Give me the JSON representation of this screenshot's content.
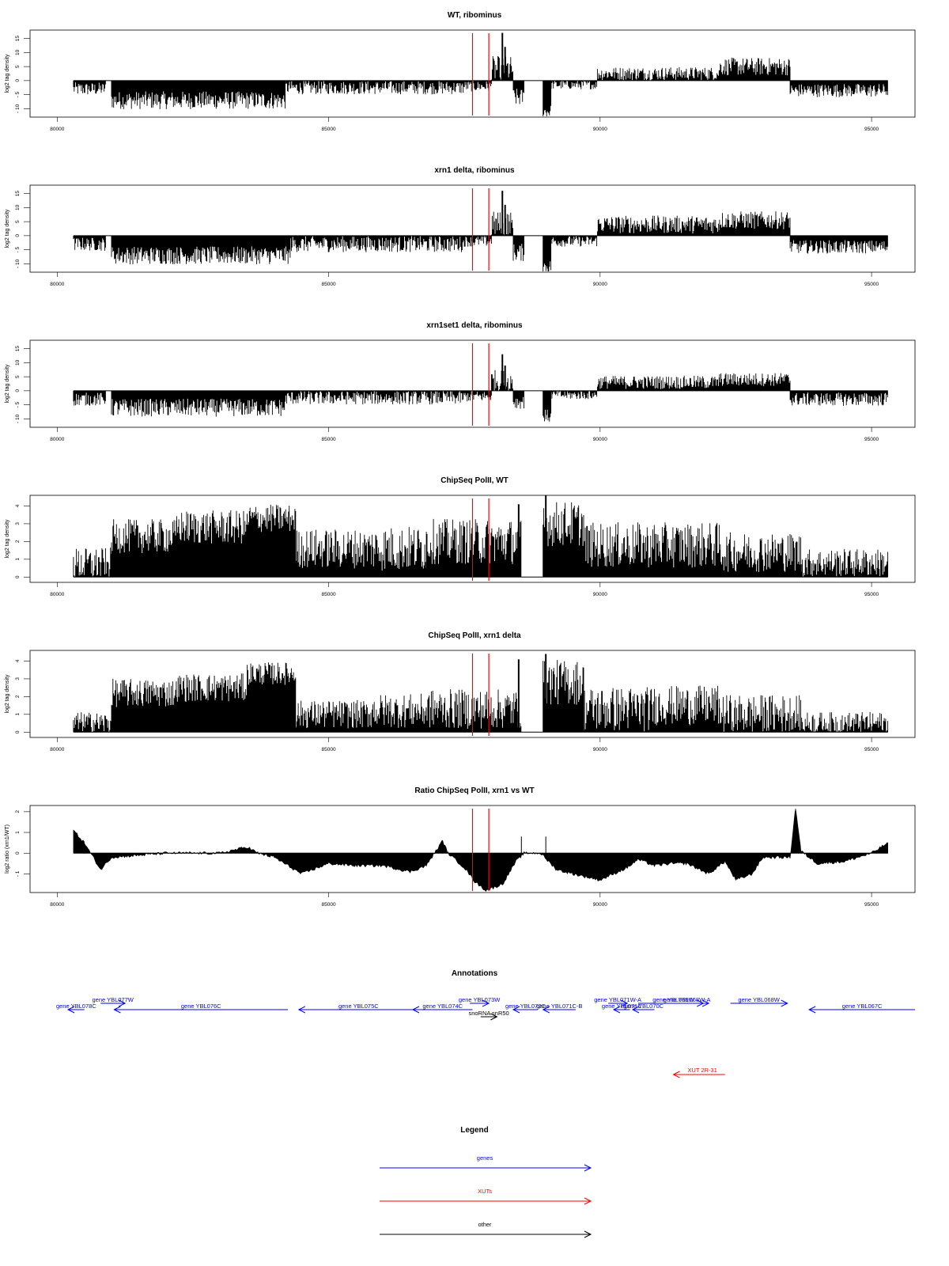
{
  "chart_data": [
    {
      "type": "bar",
      "title": "WT, ribominus",
      "ylabel": "log2 tag density",
      "xlim": [
        79500,
        95800
      ],
      "ylim": [
        -13,
        18
      ],
      "yticks": [
        -10,
        -5,
        0,
        5,
        10,
        15
      ],
      "xticks": [
        80000,
        85000,
        90000,
        95000
      ],
      "vlines": [
        87650,
        87950
      ],
      "segments": [
        {
          "x0": 80300,
          "x1": 80900,
          "y": -3,
          "v": 1.5
        },
        {
          "x0": 80900,
          "x1": 81000,
          "y": 0,
          "v": 0
        },
        {
          "x0": 81000,
          "x1": 84200,
          "y": -7,
          "v": 2
        },
        {
          "x0": 84200,
          "x1": 87500,
          "y": -2.5,
          "v": 1.5
        },
        {
          "x0": 87500,
          "x1": 88000,
          "y": -2,
          "v": 1.2
        },
        {
          "x0": 88000,
          "x1": 88400,
          "y": 4,
          "v": 3
        },
        {
          "x0": 88400,
          "x1": 88600,
          "y": -6,
          "v": 2
        },
        {
          "x0": 88600,
          "x1": 88950,
          "y": 0,
          "v": 0
        },
        {
          "x0": 88950,
          "x1": 89100,
          "y": -11,
          "v": 1.5
        },
        {
          "x0": 89100,
          "x1": 89950,
          "y": -1.5,
          "v": 1
        },
        {
          "x0": 89950,
          "x1": 92200,
          "y": 2.5,
          "v": 1.5
        },
        {
          "x0": 92200,
          "x1": 93500,
          "y": 5,
          "v": 2
        },
        {
          "x0": 93500,
          "x1": 95300,
          "y": -3.5,
          "v": 1.5
        }
      ],
      "spikes": [
        {
          "x": 88200,
          "y": 17
        },
        {
          "x": 88250,
          "y": 12
        }
      ]
    },
    {
      "type": "bar",
      "title": "xrn1 delta, ribominus",
      "ylabel": "log2 tag density",
      "xlim": [
        79500,
        95800
      ],
      "ylim": [
        -13,
        18
      ],
      "yticks": [
        -10,
        -5,
        0,
        5,
        10,
        15
      ],
      "xticks": [
        80000,
        85000,
        90000,
        95000
      ],
      "vlines": [
        87650,
        87950
      ],
      "segments": [
        {
          "x0": 80300,
          "x1": 80900,
          "y": -3,
          "v": 1.5
        },
        {
          "x0": 80900,
          "x1": 81000,
          "y": 0,
          "v": 0
        },
        {
          "x0": 81000,
          "x1": 84300,
          "y": -7,
          "v": 2
        },
        {
          "x0": 84300,
          "x1": 87500,
          "y": -3,
          "v": 1.8
        },
        {
          "x0": 87500,
          "x1": 88000,
          "y": -2,
          "v": 1.2
        },
        {
          "x0": 88000,
          "x1": 88400,
          "y": 4,
          "v": 3
        },
        {
          "x0": 88400,
          "x1": 88600,
          "y": -6,
          "v": 2
        },
        {
          "x0": 88600,
          "x1": 88950,
          "y": 0,
          "v": 0
        },
        {
          "x0": 88950,
          "x1": 89100,
          "y": -11,
          "v": 1.5
        },
        {
          "x0": 89100,
          "x1": 89950,
          "y": -2,
          "v": 1.2
        },
        {
          "x0": 89950,
          "x1": 92200,
          "y": 4,
          "v": 2
        },
        {
          "x0": 92200,
          "x1": 93500,
          "y": 5.5,
          "v": 2
        },
        {
          "x0": 93500,
          "x1": 95300,
          "y": -4,
          "v": 1.5
        }
      ],
      "spikes": [
        {
          "x": 88200,
          "y": 16
        },
        {
          "x": 88250,
          "y": 11
        }
      ]
    },
    {
      "type": "bar",
      "title": "xrn1set1 delta, ribominus",
      "ylabel": "log2 tag density",
      "xlim": [
        79500,
        95800
      ],
      "ylim": [
        -13,
        18
      ],
      "yticks": [
        -10,
        -5,
        0,
        5,
        10,
        15
      ],
      "xticks": [
        80000,
        85000,
        90000,
        95000
      ],
      "vlines": [
        87650,
        87950
      ],
      "segments": [
        {
          "x0": 80300,
          "x1": 80900,
          "y": -3,
          "v": 1.5
        },
        {
          "x0": 80900,
          "x1": 81000,
          "y": 0,
          "v": 0
        },
        {
          "x0": 81000,
          "x1": 84200,
          "y": -6,
          "v": 2
        },
        {
          "x0": 84200,
          "x1": 87500,
          "y": -2.5,
          "v": 1.5
        },
        {
          "x0": 87500,
          "x1": 88000,
          "y": -2,
          "v": 1.2
        },
        {
          "x0": 88000,
          "x1": 88400,
          "y": 3.5,
          "v": 2.5
        },
        {
          "x0": 88400,
          "x1": 88600,
          "y": -4,
          "v": 1.5
        },
        {
          "x0": 88600,
          "x1": 88950,
          "y": 0,
          "v": 0
        },
        {
          "x0": 88950,
          "x1": 89100,
          "y": -9,
          "v": 1.5
        },
        {
          "x0": 89100,
          "x1": 89950,
          "y": -1.5,
          "v": 1
        },
        {
          "x0": 89950,
          "x1": 92200,
          "y": 3,
          "v": 1.5
        },
        {
          "x0": 92200,
          "x1": 93500,
          "y": 4,
          "v": 1.5
        },
        {
          "x0": 93500,
          "x1": 95300,
          "y": -3,
          "v": 1.5
        }
      ],
      "spikes": [
        {
          "x": 88200,
          "y": 13
        },
        {
          "x": 88250,
          "y": 9
        }
      ]
    },
    {
      "type": "bar",
      "title": "ChipSeq PolII, WT",
      "ylabel": "log2 tag density",
      "xlim": [
        79500,
        95800
      ],
      "ylim": [
        -0.3,
        4.6
      ],
      "yticks": [
        0,
        1,
        2,
        3,
        4
      ],
      "xticks": [
        80000,
        85000,
        90000,
        95000
      ],
      "vlines": [
        87650,
        87950
      ],
      "segments": [
        {
          "x0": 80300,
          "x1": 81000,
          "y": 0.7,
          "v": 0.6
        },
        {
          "x0": 81000,
          "x1": 82200,
          "y": 2.3,
          "v": 0.6
        },
        {
          "x0": 82200,
          "x1": 83500,
          "y": 2.8,
          "v": 0.6
        },
        {
          "x0": 83500,
          "x1": 84400,
          "y": 3.3,
          "v": 0.5
        },
        {
          "x0": 84400,
          "x1": 85800,
          "y": 1.6,
          "v": 0.7
        },
        {
          "x0": 85800,
          "x1": 86800,
          "y": 1.6,
          "v": 0.8
        },
        {
          "x0": 86800,
          "x1": 88550,
          "y": 2.0,
          "v": 0.8
        },
        {
          "x0": 88550,
          "x1": 88950,
          "y": 0,
          "v": 0
        },
        {
          "x0": 88950,
          "x1": 89700,
          "y": 3.0,
          "v": 0.8
        },
        {
          "x0": 89700,
          "x1": 91000,
          "y": 1.8,
          "v": 0.8
        },
        {
          "x0": 91000,
          "x1": 92200,
          "y": 1.8,
          "v": 0.8
        },
        {
          "x0": 92200,
          "x1": 93700,
          "y": 1.4,
          "v": 0.7
        },
        {
          "x0": 93700,
          "x1": 95300,
          "y": 0.8,
          "v": 0.5
        }
      ],
      "spikes": [
        {
          "x": 88500,
          "y": 4.1
        },
        {
          "x": 89000,
          "y": 4.6
        }
      ]
    },
    {
      "type": "bar",
      "title": "ChipSeq PolII, xrn1 delta",
      "ylabel": "log2 tag density",
      "xlim": [
        79500,
        95800
      ],
      "ylim": [
        -0.3,
        4.6
      ],
      "yticks": [
        0,
        1,
        2,
        3,
        4
      ],
      "xticks": [
        80000,
        85000,
        90000,
        95000
      ],
      "vlines": [
        87650,
        87950
      ],
      "segments": [
        {
          "x0": 80300,
          "x1": 81000,
          "y": 0.5,
          "v": 0.4
        },
        {
          "x0": 81000,
          "x1": 82200,
          "y": 2.2,
          "v": 0.5
        },
        {
          "x0": 82200,
          "x1": 83500,
          "y": 2.5,
          "v": 0.5
        },
        {
          "x0": 83500,
          "x1": 84400,
          "y": 3.3,
          "v": 0.4
        },
        {
          "x0": 84400,
          "x1": 85800,
          "y": 1.0,
          "v": 0.5
        },
        {
          "x0": 85800,
          "x1": 86800,
          "y": 1.2,
          "v": 0.6
        },
        {
          "x0": 86800,
          "x1": 88550,
          "y": 1.3,
          "v": 0.7
        },
        {
          "x0": 88550,
          "x1": 88950,
          "y": 0,
          "v": 0
        },
        {
          "x0": 88950,
          "x1": 89700,
          "y": 2.8,
          "v": 0.8
        },
        {
          "x0": 89700,
          "x1": 91000,
          "y": 1.3,
          "v": 0.8
        },
        {
          "x0": 91000,
          "x1": 92200,
          "y": 1.5,
          "v": 0.7
        },
        {
          "x0": 92200,
          "x1": 93700,
          "y": 1.0,
          "v": 0.7
        },
        {
          "x0": 93700,
          "x1": 95300,
          "y": 0.5,
          "v": 0.4
        }
      ],
      "spikes": [
        {
          "x": 88500,
          "y": 4.1
        },
        {
          "x": 89000,
          "y": 4.4
        }
      ]
    },
    {
      "type": "area",
      "title": "Ratio ChipSeq PolII, xrn1 vs WT",
      "ylabel": "log2 ratio (xrn1/WT)",
      "xlim": [
        79500,
        95800
      ],
      "ylim": [
        -1.9,
        2.3
      ],
      "yticks": [
        -1,
        0,
        1,
        2
      ],
      "xticks": [
        80000,
        85000,
        90000,
        95000
      ],
      "vlines": [
        87650,
        87950
      ],
      "x": [
        80300,
        80500,
        80800,
        81000,
        81500,
        82000,
        82500,
        83000,
        83500,
        83700,
        84000,
        84500,
        85000,
        85500,
        86000,
        86500,
        86800,
        87100,
        87200,
        87500,
        87700,
        87900,
        88200,
        88450,
        88600,
        88900,
        89200,
        89500,
        90000,
        90500,
        90700,
        91000,
        91300,
        91600,
        92000,
        92300,
        92500,
        92800,
        93000,
        93500,
        93600,
        93700,
        94000,
        94500,
        95000,
        95300
      ],
      "y": [
        1.1,
        0.5,
        -0.8,
        -0.2,
        -0.1,
        0.0,
        0.0,
        0.0,
        0.3,
        0.0,
        -0.2,
        -1.0,
        -0.5,
        -0.6,
        -0.6,
        -0.9,
        -0.6,
        0.6,
        0.0,
        -0.7,
        -1.4,
        -1.8,
        -1.5,
        -0.4,
        0.0,
        0.0,
        -0.8,
        -1.0,
        -1.3,
        -0.7,
        -0.3,
        -0.6,
        -0.5,
        -0.5,
        -1.0,
        -0.4,
        -1.3,
        -1.0,
        -0.2,
        -0.2,
        2.2,
        0.1,
        -0.5,
        -0.4,
        0.0,
        0.5
      ],
      "spikes": [
        {
          "x": 88550,
          "y": 0.8
        },
        {
          "x": 89000,
          "y": 0.8
        }
      ]
    }
  ],
  "annotations": {
    "title": "Annotations",
    "colors": {
      "genes": "#0000ff",
      "xuts": "#ff0000",
      "other": "#000000"
    },
    "genes": [
      {
        "label": "gene YBL077W",
        "start": 80800,
        "end": 81250,
        "row": 1,
        "dir": "right"
      },
      {
        "label": "gene YBL078C",
        "start": 80500,
        "end": 80200,
        "row": 0,
        "dir": "left"
      },
      {
        "label": "gene YBL076C",
        "start": 84250,
        "end": 81050,
        "row": 0,
        "dir": "left"
      },
      {
        "label": "gene YBL075C",
        "start": 86650,
        "end": 84450,
        "row": 0,
        "dir": "left"
      },
      {
        "label": "gene YBL074C",
        "start": 87650,
        "end": 86550,
        "row": 0,
        "dir": "left"
      },
      {
        "label": "gene YBL073W",
        "start": 87600,
        "end": 87950,
        "row": 1,
        "dir": "right"
      },
      {
        "label": "gene YBL072C",
        "start": 88850,
        "end": 88400,
        "row": 0,
        "dir": "left"
      },
      {
        "label": "gene YBL071C-B",
        "start": 89550,
        "end": 88950,
        "row": 0,
        "dir": "left"
      },
      {
        "label": "gene YBL071W-A",
        "start": 90150,
        "end": 90500,
        "row": 1,
        "dir": "right"
      },
      {
        "label": "gene YBL071C",
        "start": 90550,
        "end": 90250,
        "row": 0,
        "dir": "left"
      },
      {
        "label": "gene YBL070C",
        "start": 91000,
        "end": 90600,
        "row": 0,
        "dir": "left"
      },
      {
        "label": "gene YBL069W",
        "start": 90700,
        "end": 92000,
        "row": 1,
        "dir": "right"
      },
      {
        "label": "gene YBL068W-A",
        "start": 91300,
        "end": 91900,
        "row": 1,
        "dir": "right"
      },
      {
        "label": "gene YBL068W",
        "start": 92400,
        "end": 93450,
        "row": 1,
        "dir": "right"
      },
      {
        "label": "gene YBL067C",
        "start": 95800,
        "end": 93850,
        "row": 0,
        "dir": "left"
      }
    ],
    "others": [
      {
        "label": "snoRNA snR50",
        "start": 87800,
        "end": 88100,
        "row": 2,
        "dir": "right"
      }
    ],
    "xuts": [
      {
        "label": "XUT 2R-31",
        "start": 92300,
        "end": 91350,
        "dir": "left"
      }
    ]
  },
  "legend": {
    "title": "Legend",
    "items": [
      {
        "label": "genes",
        "color": "#0000ff"
      },
      {
        "label": "XUTs",
        "color": "#ff0000"
      },
      {
        "label": "other",
        "color": "#000000"
      }
    ]
  }
}
